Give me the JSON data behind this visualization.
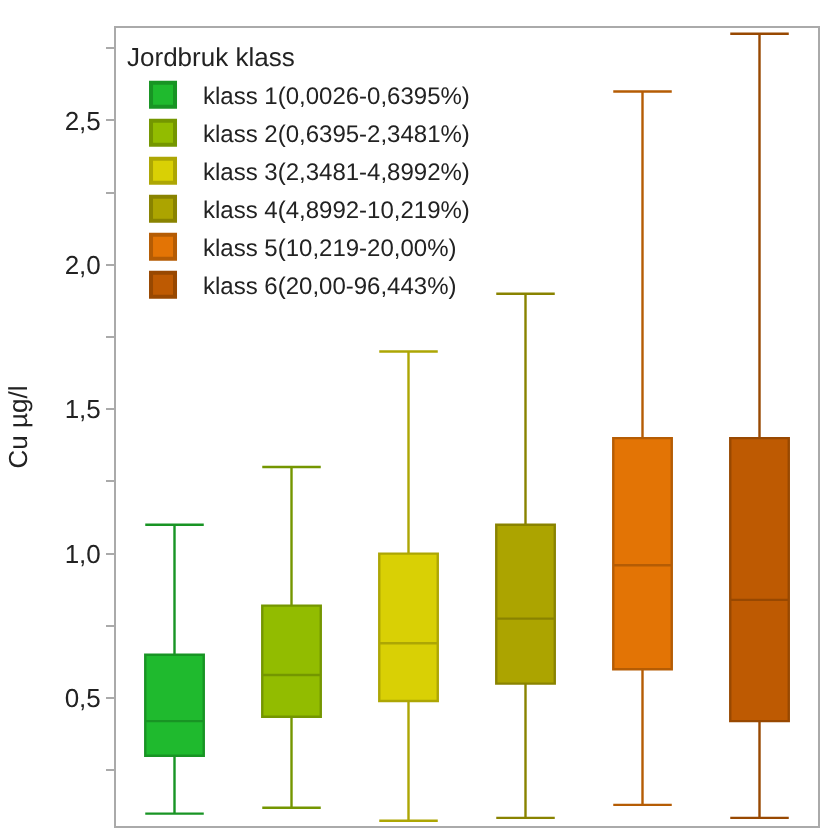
{
  "chart_data": {
    "type": "box",
    "ylabel": "Cu µg/l",
    "legend_title": "Jordbruk klass",
    "legend": "top left",
    "categories": [
      null,
      null,
      null,
      null,
      null,
      null
    ],
    "ylim": [
      0.057,
      2.82
    ],
    "yticks": [
      {
        "value": 0.25,
        "label": null
      },
      {
        "value": 0.5,
        "label": "0,5"
      },
      {
        "value": 0.75,
        "label": null
      },
      {
        "value": 1.0,
        "label": "1,0"
      },
      {
        "value": 1.25,
        "label": null
      },
      {
        "value": 1.5,
        "label": "1,5"
      },
      {
        "value": 1.75,
        "label": null
      },
      {
        "value": 2.0,
        "label": "2,0"
      },
      {
        "value": 2.25,
        "label": null
      },
      {
        "value": 2.5,
        "label": "2,5"
      },
      {
        "value": 2.75,
        "label": null
      }
    ],
    "series": [
      {
        "name": "klass 1(0,0026-0,6395%)",
        "color": "#1fba2e",
        "boxes": [
          {
            "low": 0.1,
            "q1": 0.3,
            "median": 0.42,
            "q3": 0.65,
            "high": 1.1
          },
          null,
          null,
          null,
          null,
          null
        ]
      },
      {
        "name": "klass 2(0,6395-2,3481%)",
        "color": "#92bc00",
        "boxes": [
          null,
          {
            "low": 0.12,
            "q1": 0.435,
            "median": 0.58,
            "q3": 0.82,
            "high": 1.3
          },
          null,
          null,
          null,
          null
        ]
      },
      {
        "name": "klass 3(2,3481-4,8992%)",
        "color": "#d9d005",
        "boxes": [
          null,
          null,
          {
            "low": 0.075,
            "q1": 0.49,
            "median": 0.69,
            "q3": 1.0,
            "high": 1.7
          },
          null,
          null,
          null
        ]
      },
      {
        "name": "klass 4(4,8992-10,219%)",
        "color": "#aca400",
        "boxes": [
          null,
          null,
          null,
          {
            "low": 0.085,
            "q1": 0.55,
            "median": 0.775,
            "q3": 1.1,
            "high": 1.9
          },
          null,
          null
        ]
      },
      {
        "name": "klass 5(10,219-20,00%)",
        "color": "#e37405",
        "boxes": [
          null,
          null,
          null,
          null,
          {
            "low": 0.13,
            "q1": 0.6,
            "median": 0.96,
            "q3": 1.4,
            "high": 2.6
          },
          null
        ]
      },
      {
        "name": "klass 6(20,00-96,443%)",
        "color": "#be5a02",
        "boxes": [
          null,
          null,
          null,
          null,
          null,
          {
            "low": 0.085,
            "q1": 0.42,
            "median": 0.84,
            "q3": 1.4,
            "high": 2.8
          }
        ]
      }
    ]
  }
}
